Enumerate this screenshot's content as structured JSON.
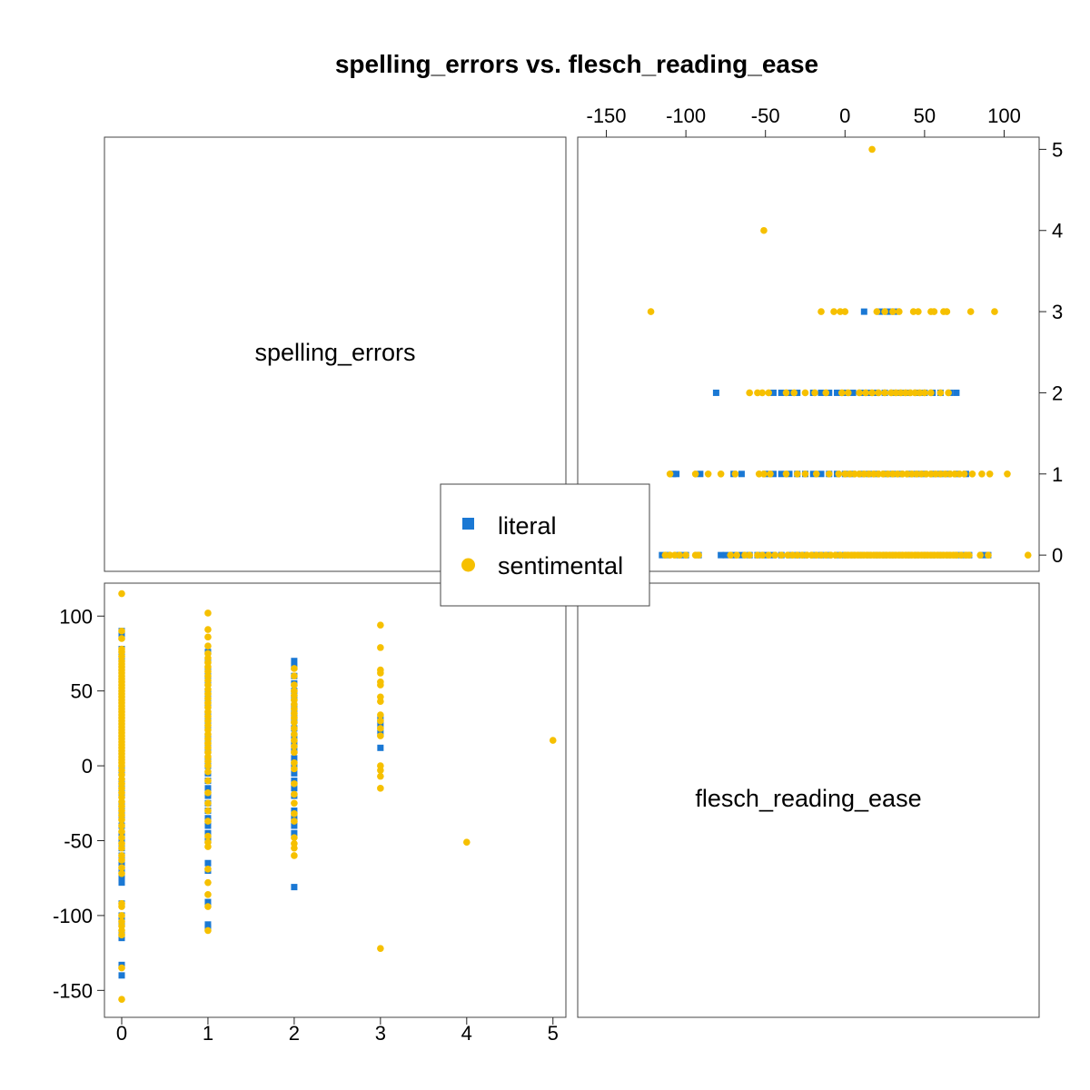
{
  "chart_data": {
    "type": "scatter",
    "title": "spelling_errors vs. flesch_reading_ease",
    "variables": [
      "spelling_errors",
      "flesch_reading_ease"
    ],
    "axes": {
      "spelling_errors": {
        "range": [
          -0.2,
          5.15
        ],
        "ticks": [
          0,
          1,
          2,
          3,
          4,
          5
        ]
      },
      "flesch_reading_ease": {
        "range": [
          -168,
          122
        ],
        "ticks": [
          -150,
          -100,
          -50,
          0,
          50,
          100
        ]
      }
    },
    "legend": {
      "placement": "center",
      "entries": [
        "literal",
        "sentimental"
      ]
    },
    "grid": false,
    "colors": {
      "literal": "#1a78d4",
      "sentimental": "#f6c000"
    },
    "markers": {
      "literal": "square",
      "sentimental": "circle"
    },
    "series": [
      {
        "name": "literal",
        "points": [
          [
            0,
            90
          ],
          [
            0,
            86
          ],
          [
            0,
            78
          ],
          [
            0,
            74
          ],
          [
            0,
            70
          ],
          [
            0,
            65
          ],
          [
            0,
            60
          ],
          [
            0,
            55
          ],
          [
            0,
            50
          ],
          [
            0,
            45
          ],
          [
            0,
            40
          ],
          [
            0,
            35
          ],
          [
            0,
            30
          ],
          [
            0,
            25
          ],
          [
            0,
            20
          ],
          [
            0,
            15
          ],
          [
            0,
            10
          ],
          [
            0,
            5
          ],
          [
            0,
            0
          ],
          [
            0,
            -5
          ],
          [
            0,
            -10
          ],
          [
            0,
            -15
          ],
          [
            0,
            -20
          ],
          [
            0,
            -25
          ],
          [
            0,
            -30
          ],
          [
            0,
            -35
          ],
          [
            0,
            -40
          ],
          [
            0,
            -45
          ],
          [
            0,
            -50
          ],
          [
            0,
            -55
          ],
          [
            0,
            -60
          ],
          [
            0,
            -65
          ],
          [
            0,
            -70
          ],
          [
            0,
            -75
          ],
          [
            0,
            -78
          ],
          [
            0,
            -92
          ],
          [
            0,
            -100
          ],
          [
            0,
            -104
          ],
          [
            0,
            -112
          ],
          [
            0,
            -115
          ],
          [
            0,
            -133
          ],
          [
            0,
            -140
          ],
          [
            1,
            76
          ],
          [
            1,
            70
          ],
          [
            1,
            65
          ],
          [
            1,
            60
          ],
          [
            1,
            55
          ],
          [
            1,
            50
          ],
          [
            1,
            45
          ],
          [
            1,
            40
          ],
          [
            1,
            35
          ],
          [
            1,
            30
          ],
          [
            1,
            25
          ],
          [
            1,
            20
          ],
          [
            1,
            15
          ],
          [
            1,
            10
          ],
          [
            1,
            5
          ],
          [
            1,
            0
          ],
          [
            1,
            -5
          ],
          [
            1,
            -10
          ],
          [
            1,
            -15
          ],
          [
            1,
            -20
          ],
          [
            1,
            -25
          ],
          [
            1,
            -30
          ],
          [
            1,
            -35
          ],
          [
            1,
            -40
          ],
          [
            1,
            -45
          ],
          [
            1,
            -50
          ],
          [
            1,
            -65
          ],
          [
            1,
            -70
          ],
          [
            1,
            -91
          ],
          [
            1,
            -106
          ],
          [
            1,
            -108
          ],
          [
            2,
            70
          ],
          [
            2,
            66
          ],
          [
            2,
            60
          ],
          [
            2,
            55
          ],
          [
            2,
            50
          ],
          [
            2,
            45
          ],
          [
            2,
            40
          ],
          [
            2,
            35
          ],
          [
            2,
            30
          ],
          [
            2,
            25
          ],
          [
            2,
            20
          ],
          [
            2,
            15
          ],
          [
            2,
            10
          ],
          [
            2,
            5
          ],
          [
            2,
            0
          ],
          [
            2,
            -5
          ],
          [
            2,
            -10
          ],
          [
            2,
            -15
          ],
          [
            2,
            -20
          ],
          [
            2,
            -30
          ],
          [
            2,
            -35
          ],
          [
            2,
            -40
          ],
          [
            2,
            -45
          ],
          [
            2,
            -81
          ],
          [
            3,
            31
          ],
          [
            3,
            27
          ],
          [
            3,
            22
          ],
          [
            3,
            12
          ]
        ]
      },
      {
        "name": "sentimental",
        "points": [
          [
            0,
            115
          ],
          [
            0,
            90
          ],
          [
            0,
            85
          ],
          [
            0,
            78
          ],
          [
            0,
            76
          ],
          [
            0,
            73
          ],
          [
            0,
            70
          ],
          [
            0,
            68
          ],
          [
            0,
            66
          ],
          [
            0,
            64
          ],
          [
            0,
            62
          ],
          [
            0,
            60
          ],
          [
            0,
            58
          ],
          [
            0,
            56
          ],
          [
            0,
            54
          ],
          [
            0,
            52
          ],
          [
            0,
            50
          ],
          [
            0,
            48
          ],
          [
            0,
            46
          ],
          [
            0,
            44
          ],
          [
            0,
            42
          ],
          [
            0,
            40
          ],
          [
            0,
            38
          ],
          [
            0,
            36
          ],
          [
            0,
            34
          ],
          [
            0,
            32
          ],
          [
            0,
            30
          ],
          [
            0,
            28
          ],
          [
            0,
            26
          ],
          [
            0,
            24
          ],
          [
            0,
            22
          ],
          [
            0,
            20
          ],
          [
            0,
            18
          ],
          [
            0,
            16
          ],
          [
            0,
            14
          ],
          [
            0,
            12
          ],
          [
            0,
            10
          ],
          [
            0,
            8
          ],
          [
            0,
            6
          ],
          [
            0,
            4
          ],
          [
            0,
            2
          ],
          [
            0,
            0
          ],
          [
            0,
            -3
          ],
          [
            0,
            -6
          ],
          [
            0,
            -9
          ],
          [
            0,
            -12
          ],
          [
            0,
            -15
          ],
          [
            0,
            -18
          ],
          [
            0,
            -21
          ],
          [
            0,
            -24
          ],
          [
            0,
            -27
          ],
          [
            0,
            -30
          ],
          [
            0,
            -33
          ],
          [
            0,
            -36
          ],
          [
            0,
            -40
          ],
          [
            0,
            -44
          ],
          [
            0,
            -48
          ],
          [
            0,
            -52
          ],
          [
            0,
            -55
          ],
          [
            0,
            -60
          ],
          [
            0,
            -63
          ],
          [
            0,
            -68
          ],
          [
            0,
            -72
          ],
          [
            0,
            -92
          ],
          [
            0,
            -94
          ],
          [
            0,
            -100
          ],
          [
            0,
            -104
          ],
          [
            0,
            -107
          ],
          [
            0,
            -110
          ],
          [
            0,
            -113
          ],
          [
            0,
            -135
          ],
          [
            0,
            -156
          ],
          [
            1,
            102
          ],
          [
            1,
            91
          ],
          [
            1,
            86
          ],
          [
            1,
            80
          ],
          [
            1,
            75
          ],
          [
            1,
            72
          ],
          [
            1,
            69
          ],
          [
            1,
            66
          ],
          [
            1,
            63
          ],
          [
            1,
            60
          ],
          [
            1,
            57
          ],
          [
            1,
            54
          ],
          [
            1,
            51
          ],
          [
            1,
            48
          ],
          [
            1,
            45
          ],
          [
            1,
            42
          ],
          [
            1,
            39
          ],
          [
            1,
            36
          ],
          [
            1,
            33
          ],
          [
            1,
            30
          ],
          [
            1,
            27
          ],
          [
            1,
            24
          ],
          [
            1,
            21
          ],
          [
            1,
            18
          ],
          [
            1,
            15
          ],
          [
            1,
            12
          ],
          [
            1,
            9
          ],
          [
            1,
            6
          ],
          [
            1,
            3
          ],
          [
            1,
            0
          ],
          [
            1,
            -4
          ],
          [
            1,
            -10
          ],
          [
            1,
            -18
          ],
          [
            1,
            -25
          ],
          [
            1,
            -30
          ],
          [
            1,
            -37
          ],
          [
            1,
            -47
          ],
          [
            1,
            -51
          ],
          [
            1,
            -54
          ],
          [
            1,
            -69
          ],
          [
            1,
            -78
          ],
          [
            1,
            -86
          ],
          [
            1,
            -94
          ],
          [
            1,
            -110
          ],
          [
            2,
            65
          ],
          [
            2,
            60
          ],
          [
            2,
            54
          ],
          [
            2,
            50
          ],
          [
            2,
            47
          ],
          [
            2,
            44
          ],
          [
            2,
            41
          ],
          [
            2,
            38
          ],
          [
            2,
            35
          ],
          [
            2,
            32
          ],
          [
            2,
            29
          ],
          [
            2,
            25
          ],
          [
            2,
            21
          ],
          [
            2,
            17
          ],
          [
            2,
            13
          ],
          [
            2,
            9
          ],
          [
            2,
            2
          ],
          [
            2,
            -2
          ],
          [
            2,
            -12
          ],
          [
            2,
            -19
          ],
          [
            2,
            -25
          ],
          [
            2,
            -32
          ],
          [
            2,
            -37
          ],
          [
            2,
            -48
          ],
          [
            2,
            -52
          ],
          [
            2,
            -55
          ],
          [
            2,
            -60
          ],
          [
            3,
            94
          ],
          [
            3,
            79
          ],
          [
            3,
            64
          ],
          [
            3,
            62
          ],
          [
            3,
            56
          ],
          [
            3,
            54
          ],
          [
            3,
            46
          ],
          [
            3,
            43
          ],
          [
            3,
            34
          ],
          [
            3,
            30
          ],
          [
            3,
            25
          ],
          [
            3,
            20
          ],
          [
            3,
            0
          ],
          [
            3,
            -3
          ],
          [
            3,
            -7
          ],
          [
            3,
            -15
          ],
          [
            3,
            -122
          ],
          [
            4,
            -51
          ],
          [
            5,
            17
          ]
        ]
      }
    ]
  }
}
